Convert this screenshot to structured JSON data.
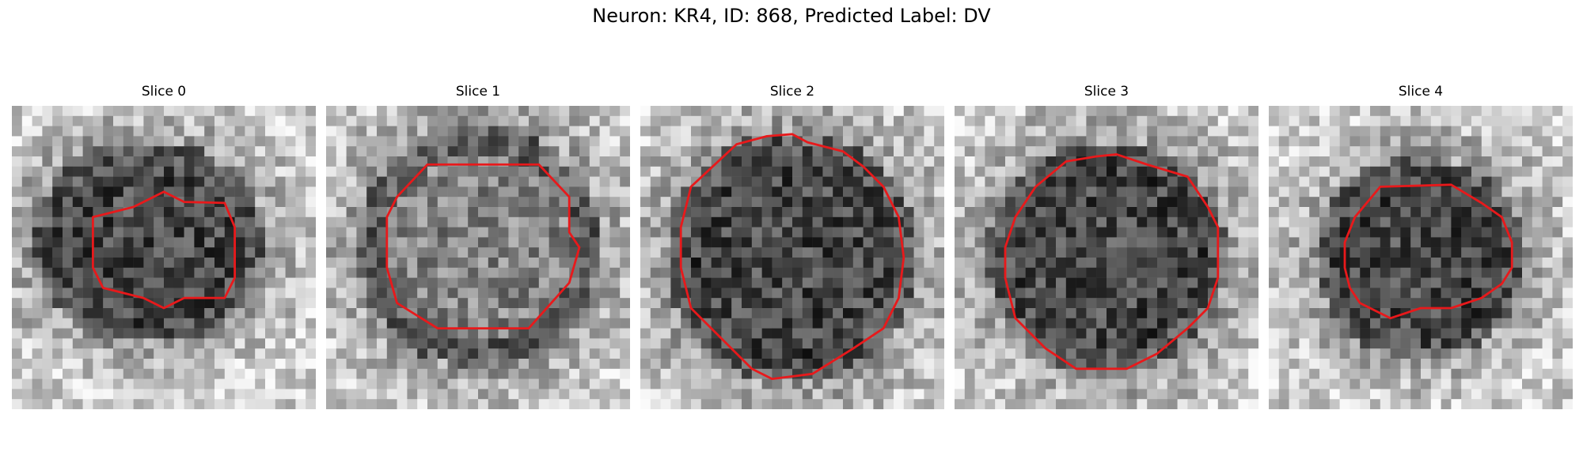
{
  "figure": {
    "title": "Neuron: KR4, ID: 868, Predicted Label: DV"
  },
  "colors": {
    "contour": "#e8191b"
  },
  "panels": [
    {
      "title": "Slice 0"
    },
    {
      "title": "Slice 1"
    },
    {
      "title": "Slice 2"
    },
    {
      "title": "Slice 3"
    },
    {
      "title": "Slice 4"
    }
  ]
}
